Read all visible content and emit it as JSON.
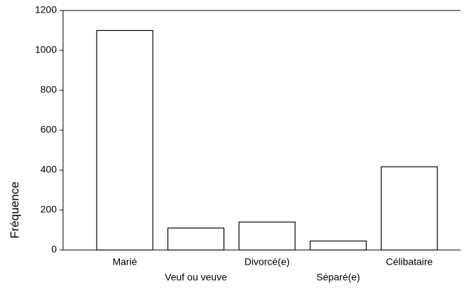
{
  "chart_data": {
    "type": "bar",
    "ylabel": "Fréquence",
    "categories": [
      "Marié",
      "Veuf ou veuve",
      "Divorcé(e)",
      "Séparé(e)",
      "Célibataire"
    ],
    "values": [
      1100,
      110,
      140,
      45,
      417
    ],
    "color": "#ffffff",
    "edgecolor": "#000000",
    "ylim": [
      0,
      1200
    ],
    "yticks": [
      0,
      200,
      400,
      600,
      800,
      1000,
      1200
    ],
    "grid": false
  }
}
